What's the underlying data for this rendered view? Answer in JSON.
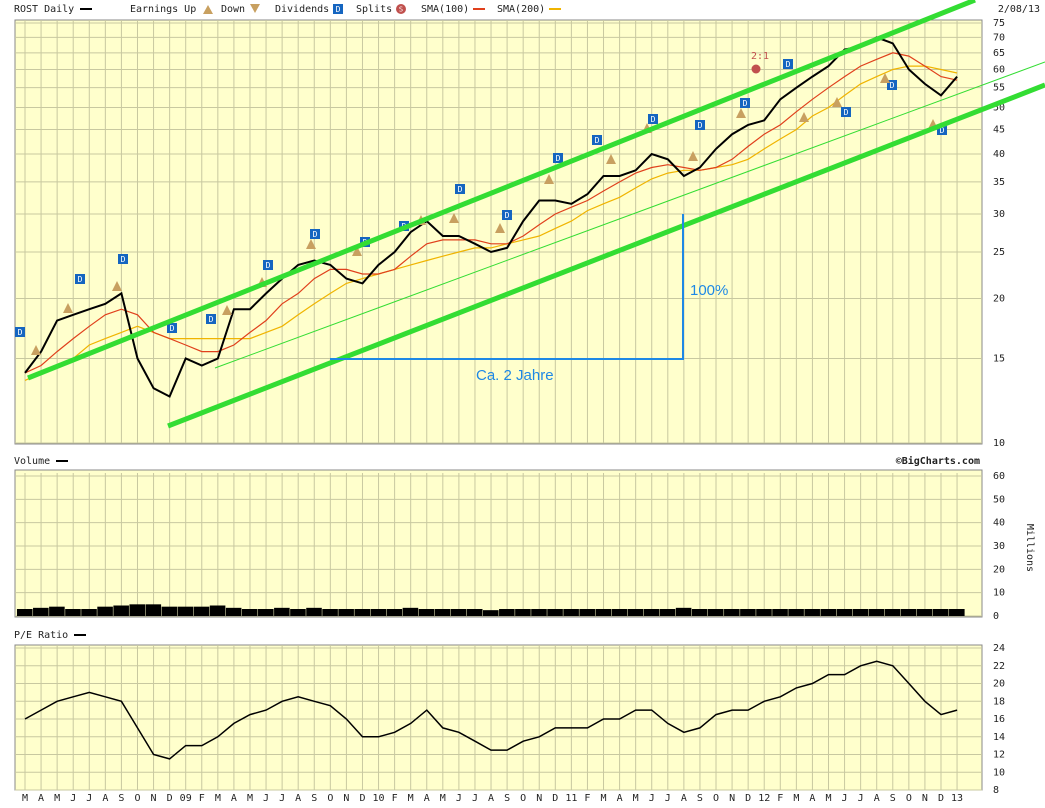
{
  "header": {
    "earnings_up": "Earnings Up",
    "earnings_down": "Down",
    "dividends": "Dividends",
    "dividends_icon": "D",
    "splits": "Splits",
    "splits_icon": "S",
    "date": "2/08/13",
    "credit": "©BigCharts.com"
  },
  "annotations": {
    "split": "2:1",
    "rise": "100%",
    "span": "Ca. 2 Jahre"
  },
  "chart_data": [
    {
      "type": "line",
      "log_scale": true,
      "grid": true,
      "ylim": [
        10,
        75
      ],
      "yticks": [
        10,
        15,
        20,
        25,
        30,
        35,
        40,
        45,
        50,
        55,
        60,
        65,
        70,
        75
      ],
      "series": [
        {
          "name": "ROST Daily",
          "color": "#000000",
          "values": [
            14,
            15.5,
            18,
            18.5,
            19,
            19.5,
            20.5,
            15,
            13,
            12.5,
            15,
            14.5,
            15,
            19,
            19,
            20.5,
            22,
            23.5,
            24,
            23.5,
            22,
            21.5,
            23.5,
            25,
            27.5,
            29,
            27,
            27,
            26,
            25,
            25.5,
            29,
            32,
            32,
            31.5,
            33,
            36,
            36,
            37,
            40,
            39,
            36,
            37.5,
            41,
            44,
            46,
            47,
            52,
            55,
            58,
            61,
            66,
            67,
            70,
            68,
            60,
            56,
            53,
            58
          ]
        },
        {
          "name": "SMA(100)",
          "color": "#e0401c",
          "values": [
            14,
            14.5,
            15.5,
            16.5,
            17.5,
            18.5,
            19,
            18.5,
            17,
            16.5,
            16,
            15.5,
            15.5,
            16,
            17,
            18,
            19.5,
            20.5,
            22,
            23,
            23,
            22.5,
            22.5,
            23,
            24.5,
            26,
            26.5,
            26.5,
            26.5,
            26,
            26,
            27,
            28.5,
            30,
            31,
            32,
            33.5,
            35,
            36.5,
            37.5,
            38,
            37.5,
            37,
            37.5,
            39,
            41.5,
            44,
            46,
            49,
            52,
            55,
            58,
            61,
            63,
            65,
            64,
            61,
            58,
            57
          ]
        },
        {
          "name": "SMA(200)",
          "color": "#f0b400",
          "values": [
            13.5,
            14,
            14.5,
            15,
            16,
            16.5,
            17,
            17.5,
            17,
            16.5,
            16.5,
            16.5,
            16.5,
            16.5,
            16.5,
            17,
            17.5,
            18.5,
            19.5,
            20.5,
            21.5,
            22,
            22.5,
            23,
            23.5,
            24,
            24.5,
            25,
            25.5,
            25.5,
            26,
            26.5,
            27,
            28,
            29,
            30.5,
            31.5,
            32.5,
            34,
            35.5,
            36.5,
            37,
            37,
            37.5,
            38,
            39,
            41,
            43,
            45,
            48,
            50,
            53,
            56,
            58,
            60,
            61,
            61,
            60,
            59
          ]
        }
      ]
    },
    {
      "type": "bar",
      "title": "Volume",
      "y_label": "Millions",
      "color": "#000000",
      "grid": true,
      "ylim": [
        0,
        60
      ],
      "yticks": [
        0,
        10,
        20,
        30,
        40,
        50,
        60
      ],
      "values": [
        3,
        3.5,
        4,
        3,
        3,
        4,
        4.5,
        5,
        5,
        4,
        4,
        4,
        4.5,
        3.5,
        3,
        3,
        3.5,
        3,
        3.5,
        3,
        3,
        3,
        3,
        3,
        3.5,
        3,
        3,
        3,
        3,
        2.5,
        3,
        3,
        3,
        3,
        3,
        3,
        3,
        3,
        3,
        3,
        3,
        3.5,
        3,
        3,
        3,
        3,
        3,
        3,
        3,
        3,
        3,
        3,
        3,
        3,
        3,
        3,
        3,
        3,
        3
      ]
    },
    {
      "type": "line",
      "title": "P/E Ratio",
      "color": "#000000",
      "grid": true,
      "categories": [
        "M",
        "A",
        "M",
        "J",
        "J",
        "A",
        "S",
        "O",
        "N",
        "D",
        "09",
        "F",
        "M",
        "A",
        "M",
        "J",
        "J",
        "A",
        "S",
        "O",
        "N",
        "D",
        "10",
        "F",
        "M",
        "A",
        "M",
        "J",
        "J",
        "A",
        "S",
        "O",
        "N",
        "D",
        "11",
        "F",
        "M",
        "A",
        "M",
        "J",
        "J",
        "A",
        "S",
        "O",
        "N",
        "D",
        "12",
        "F",
        "M",
        "A",
        "M",
        "J",
        "J",
        "A",
        "S",
        "O",
        "N",
        "D",
        "13"
      ],
      "ylim": [
        8,
        24
      ],
      "yticks": [
        8,
        10,
        12,
        14,
        16,
        18,
        20,
        22,
        24
      ],
      "values": [
        16,
        17,
        18,
        18.5,
        19,
        18.5,
        18,
        15,
        12,
        11.5,
        13,
        13,
        14,
        15.5,
        16.5,
        17,
        18,
        18.5,
        18,
        17.5,
        16,
        14,
        14,
        14.5,
        15.5,
        17,
        15,
        14.5,
        13.5,
        12.5,
        12.5,
        13.5,
        14,
        15,
        15,
        15,
        16,
        16,
        17,
        17,
        15.5,
        14.5,
        15,
        16.5,
        17,
        17,
        18,
        18.5,
        19.5,
        20,
        21,
        21,
        22,
        22.5,
        22,
        20,
        18,
        16.5,
        17
      ]
    }
  ]
}
